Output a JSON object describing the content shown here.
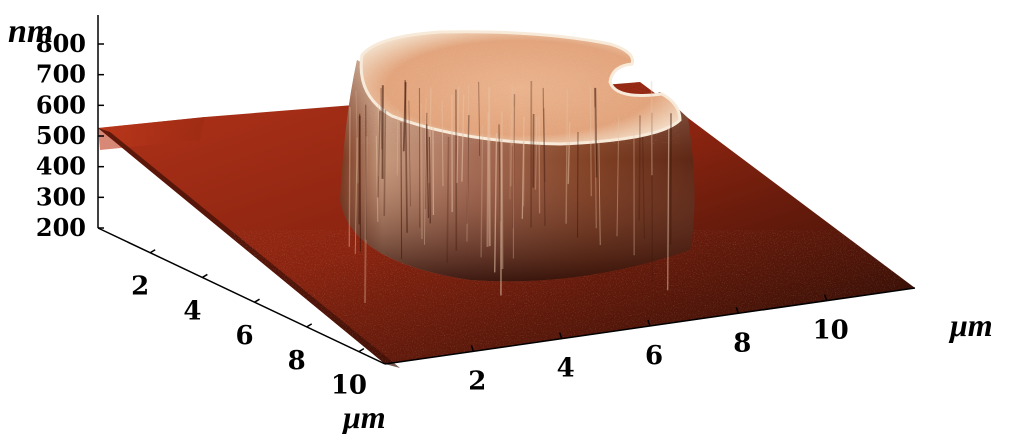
{
  "chart_data": {
    "type": "surface-3d",
    "title": "",
    "z_axis": {
      "unit": "nm",
      "ticks": [
        "800",
        "700",
        "600",
        "500",
        "400",
        "300",
        "200"
      ],
      "range": [
        200,
        850
      ]
    },
    "y_axis": {
      "unit": "μm",
      "ticks": [
        "2",
        "4",
        "6",
        "8",
        "10"
      ],
      "range": [
        0,
        11
      ]
    },
    "x_axis": {
      "unit": "μm",
      "ticks": [
        "2",
        "4",
        "6",
        "8",
        "10"
      ],
      "range": [
        0,
        12
      ]
    },
    "surface": {
      "base_height_nm": 530,
      "feature": "cylindrical pillar with notched rim",
      "pillar_top_height_nm": 850
    },
    "colormap": [
      "#5a0a00",
      "#b33a14",
      "#e8a070",
      "#f5dcc0"
    ],
    "grid": false,
    "legend": "none"
  }
}
